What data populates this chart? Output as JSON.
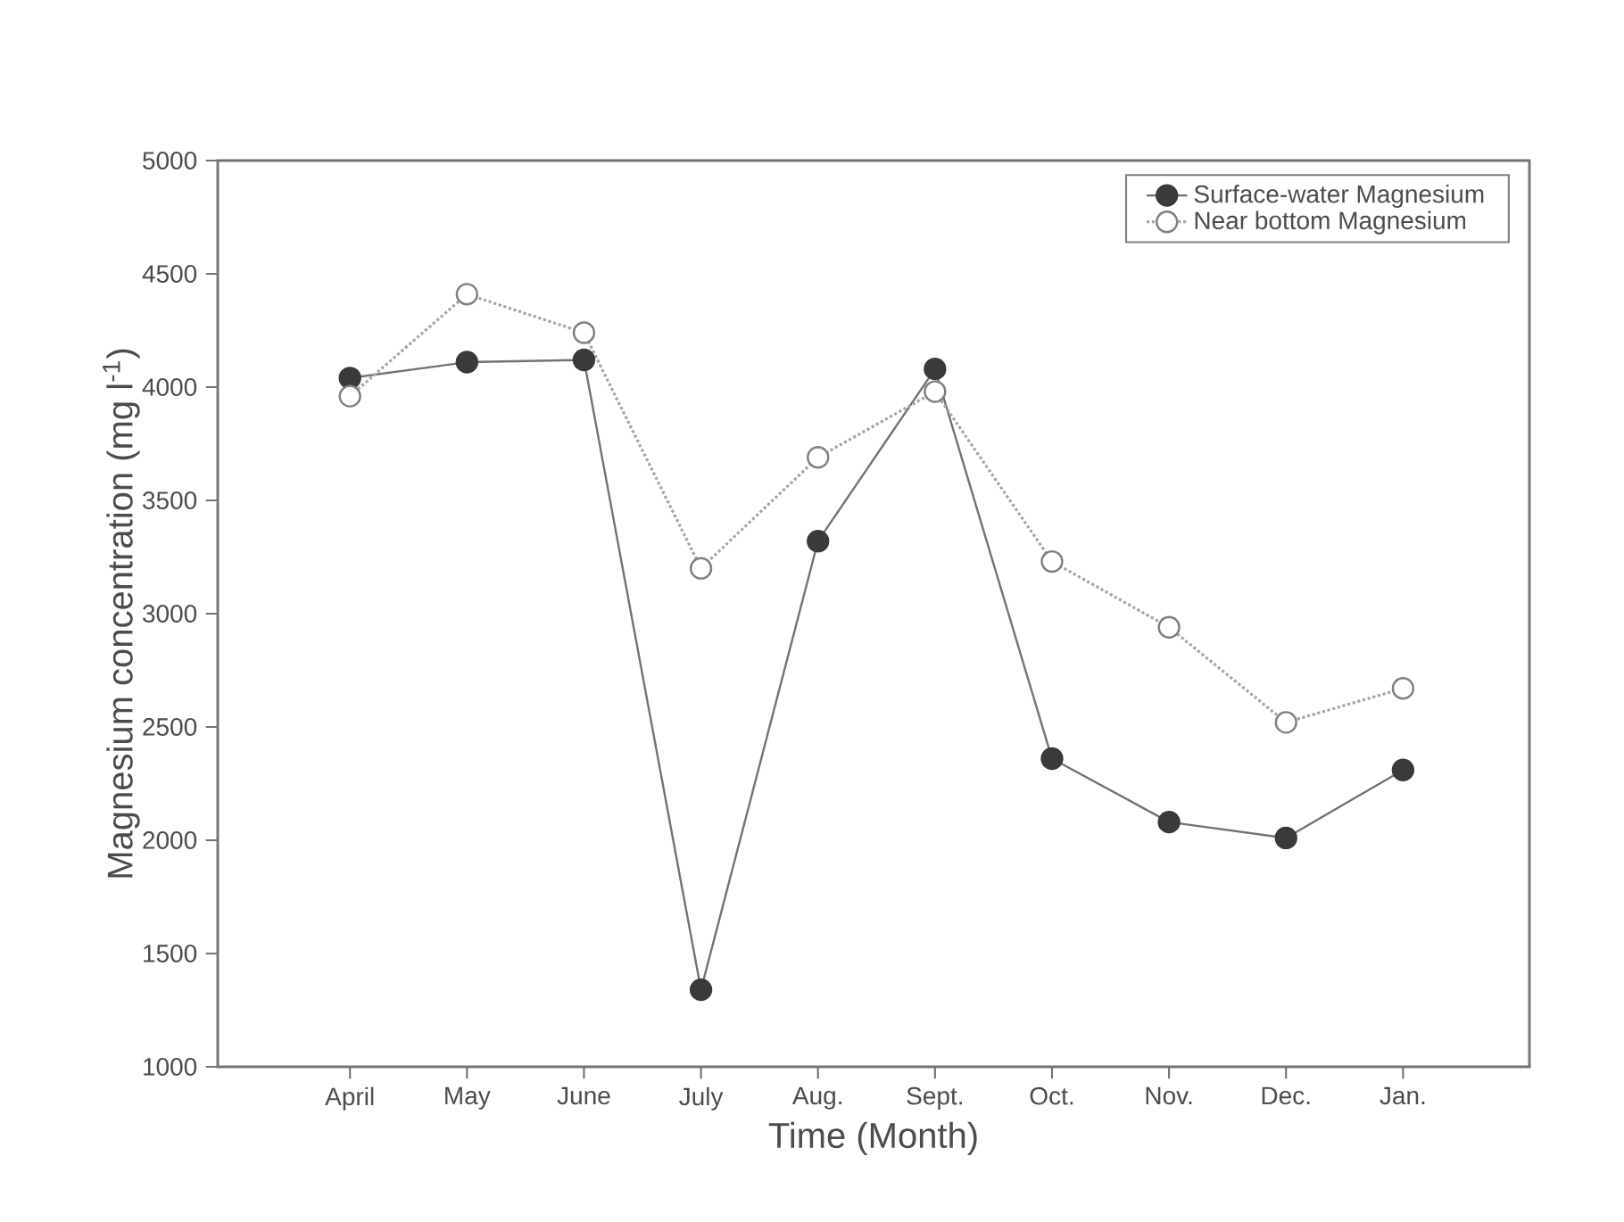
{
  "chart_data": {
    "type": "line",
    "xlabel": "Time (Month)",
    "ylabel": "Magnesium concentration (mg l$^{-1}$)",
    "categories": [
      "April",
      "May",
      "June",
      "July",
      "Aug.",
      "Sept.",
      "Oct.",
      "Nov.",
      "Dec.",
      "Jan."
    ],
    "series": [
      {
        "name": "Surface-water Magnesium",
        "color": "#3a3a3a",
        "marker": "circle",
        "line_style": "solid",
        "values": [
          4040,
          4110,
          4120,
          1340,
          3320,
          4080,
          2360,
          2080,
          2010,
          2310
        ]
      },
      {
        "name": "Near bottom Magnesium",
        "color": "#808080",
        "marker": "circle",
        "line_style": "dotted",
        "values": [
          3960,
          4410,
          4240,
          3200,
          3690,
          3980,
          3230,
          2940,
          2520,
          2670
        ]
      }
    ],
    "ylim": [
      1000,
      5000
    ],
    "yticks": [
      1000,
      1500,
      2000,
      2500,
      3000,
      3500,
      4000,
      4500,
      5000
    ],
    "grid": false,
    "legend": "top right"
  }
}
